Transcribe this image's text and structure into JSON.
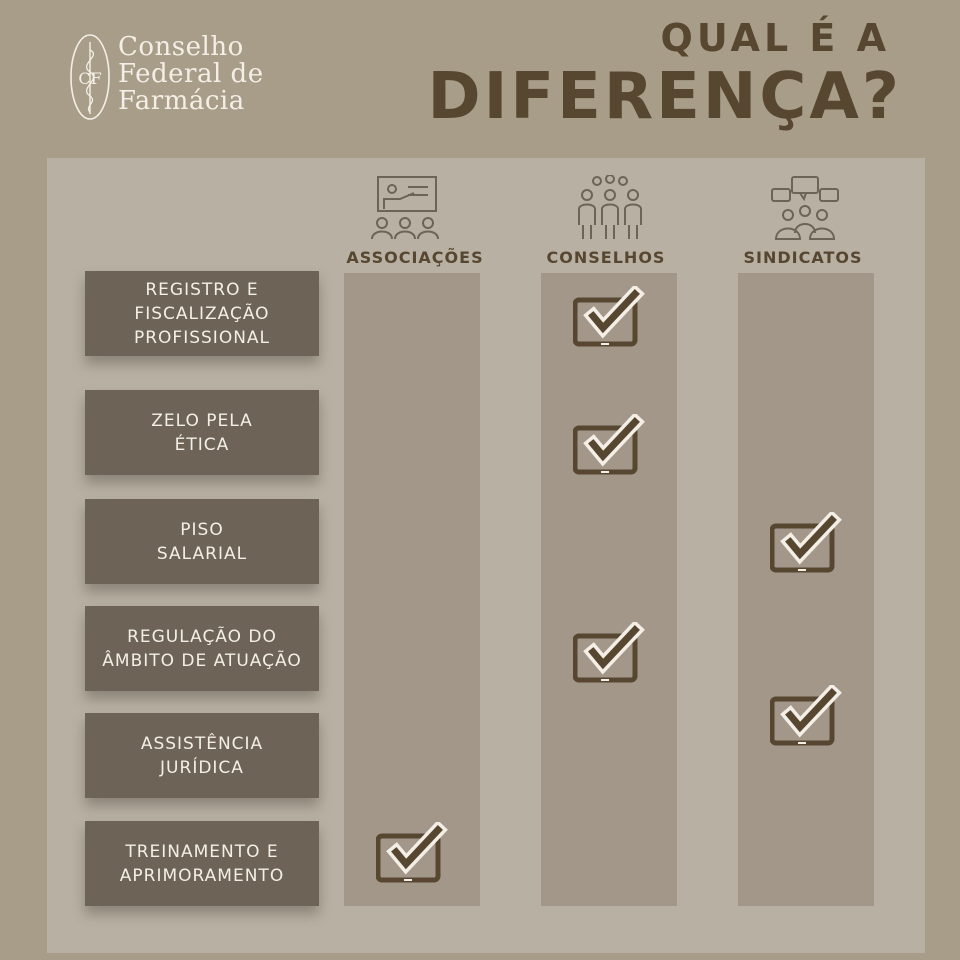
{
  "brand": {
    "line1": "Conselho",
    "line2": "Federal de",
    "line3": "Farmácia",
    "emblem_letters": "CF"
  },
  "title": {
    "line1": "QUAL É A",
    "line2": "DIFERENÇA?"
  },
  "colors": {
    "background": "#a89d89",
    "panel": "#b8b1a3",
    "column": "#a3978a",
    "row_label": "#6d6356",
    "accent_dark": "#574630",
    "text_light": "#f4efe6"
  },
  "columns": [
    {
      "label": "ASSOCIAÇÕES",
      "icon": "presentation-icon"
    },
    {
      "label": "CONSELHOS",
      "icon": "group-people-icon"
    },
    {
      "label": "SINDICATOS",
      "icon": "discussion-icon"
    }
  ],
  "rows": [
    {
      "label": "REGISTRO E\nFISCALIZAÇÃO\nPROFISSIONAL",
      "checks": [
        false,
        true,
        false
      ]
    },
    {
      "label": "ZELO PELA\nÉTICA",
      "checks": [
        false,
        true,
        false
      ]
    },
    {
      "label": "PISO\nSALARIAL",
      "checks": [
        false,
        false,
        true
      ]
    },
    {
      "label": "REGULAÇÃO DO\nÂMBITO DE ATUAÇÃO",
      "checks": [
        false,
        true,
        false
      ]
    },
    {
      "label": "ASSISTÊNCIA\nJURÍDICA",
      "checks": [
        false,
        false,
        true
      ]
    },
    {
      "label": "TREINAMENTO E\nAPRIMORAMENTO",
      "checks": [
        true,
        false,
        false
      ]
    }
  ]
}
